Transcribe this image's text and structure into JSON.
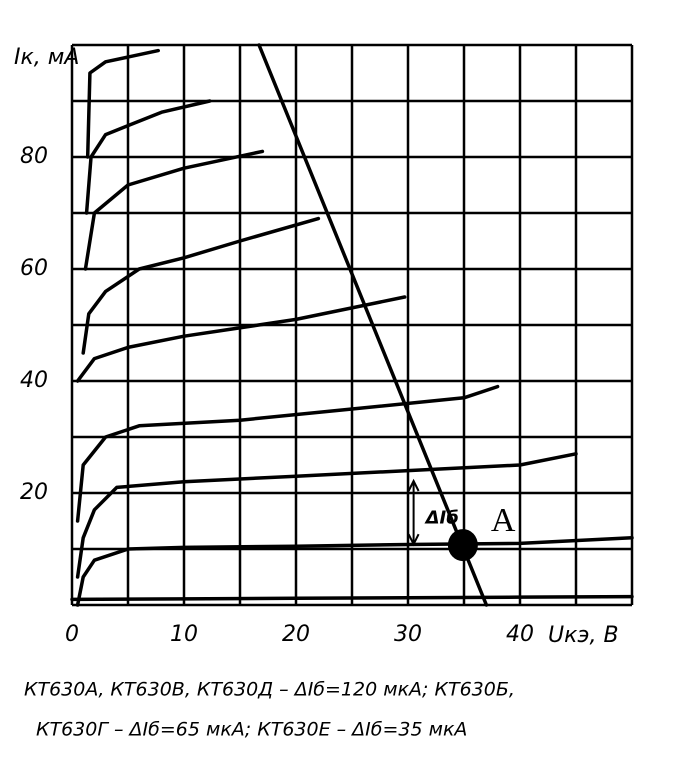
{
  "chart_data": {
    "type": "line",
    "y_label": "Iк, мА",
    "x_label": "Uкэ, В",
    "caption": [
      "КТ630А, КТ630В, КТ630Д – ΔIб=120 мкА; КТ630Б,",
      "КТ630Г – ΔIб=65 мкА; КТ630Е – ΔIб=35 мкА"
    ],
    "xlim": [
      0,
      50
    ],
    "ylim": [
      0,
      100
    ],
    "xticks": [
      0,
      10,
      20,
      30,
      40
    ],
    "yticks": [
      20,
      40,
      60,
      80
    ],
    "xgrid": [
      0,
      5,
      10,
      15,
      20,
      25,
      30,
      35,
      40,
      45,
      50
    ],
    "ygrid": [
      0,
      10,
      20,
      30,
      40,
      50,
      60,
      70,
      80,
      90,
      100
    ],
    "grid": true,
    "color": "#000000",
    "series": [
      {
        "x": [
          0,
          10,
          20,
          30,
          40,
          50
        ],
        "values": [
          1,
          1.1,
          1.2,
          1.3,
          1.4,
          1.5
        ]
      },
      {
        "x": [
          0.5,
          1,
          2,
          5,
          10,
          20,
          30,
          40,
          50
        ],
        "values": [
          0,
          5,
          8,
          10,
          10.3,
          10.5,
          10.8,
          11,
          12
        ]
      },
      {
        "x": [
          0.5,
          1,
          2,
          4,
          10,
          20,
          30,
          40,
          45
        ],
        "values": [
          5,
          12,
          17,
          21,
          22,
          23,
          24,
          25,
          27
        ]
      },
      {
        "x": [
          0.5,
          1,
          3,
          6,
          15,
          25,
          35,
          38
        ],
        "values": [
          15,
          25,
          30,
          32,
          33,
          35,
          37,
          39
        ]
      },
      {
        "x": [
          0.5,
          2,
          5,
          10,
          20,
          29.7
        ],
        "values": [
          40,
          44,
          46,
          48,
          51,
          55
        ]
      },
      {
        "x": [
          1,
          1.5,
          3,
          6,
          10,
          15,
          22
        ],
        "values": [
          45,
          52,
          56,
          60,
          62,
          65,
          69
        ]
      },
      {
        "x": [
          1.2,
          2,
          5,
          10,
          17
        ],
        "values": [
          60,
          70,
          75,
          78,
          81
        ]
      },
      {
        "x": [
          1.3,
          1.7,
          3,
          8,
          12.3
        ],
        "values": [
          70,
          80,
          84,
          88,
          90
        ]
      },
      {
        "x": [
          1.4,
          1.6,
          3,
          7.7
        ],
        "values": [
          80,
          95,
          97,
          99
        ]
      }
    ],
    "load_line": {
      "x": [
        16.7,
        37
      ],
      "values": [
        100,
        0
      ]
    },
    "point": {
      "label": "A",
      "x": 34.9,
      "y": 10.7
    },
    "delta": {
      "label": "ΔIб",
      "x": 30.5,
      "values": [
        10.5,
        22.5
      ]
    }
  }
}
